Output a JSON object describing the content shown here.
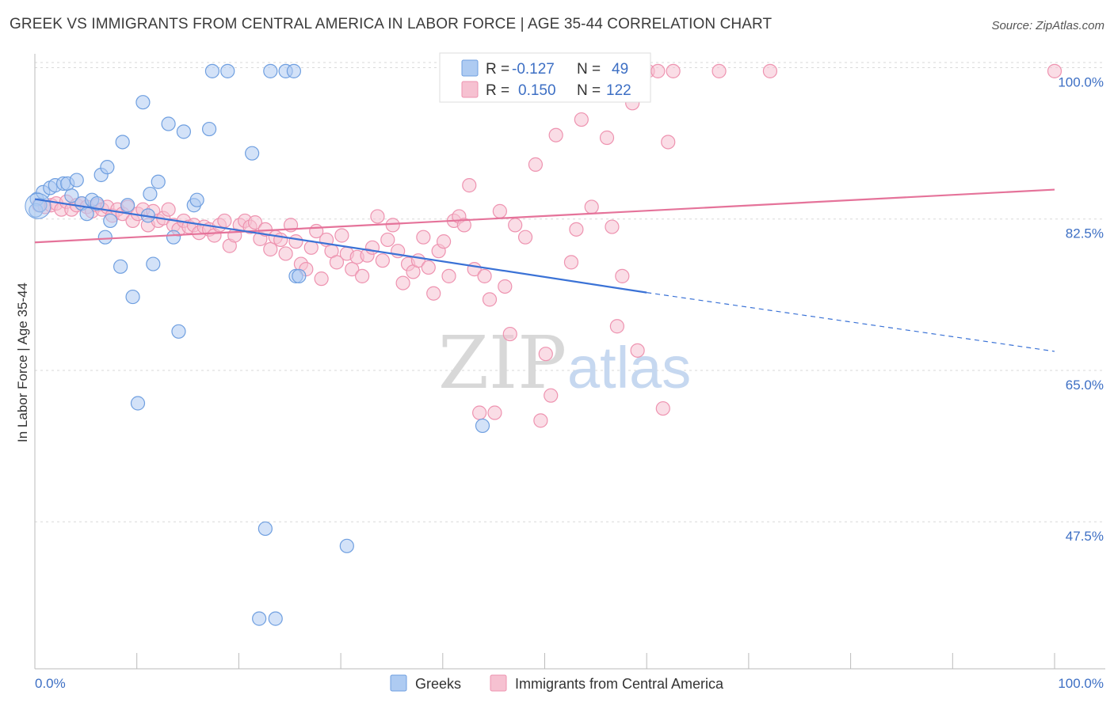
{
  "title": "GREEK VS IMMIGRANTS FROM CENTRAL AMERICA IN LABOR FORCE | AGE 35-44 CORRELATION CHART",
  "source": "Source: ZipAtlas.com",
  "watermark": {
    "zip": "ZIP",
    "atlas": "atlas"
  },
  "colors": {
    "greek_fill": "#aecbf2",
    "greek_stroke": "#6f9fe0",
    "greek_line": "#3a72d6",
    "central_fill": "#f6c1d1",
    "central_stroke": "#ee93b0",
    "central_line": "#e5739a",
    "tick_text": "#3d6fc4",
    "grid": "#d9d9d9"
  },
  "legend": {
    "r_label": "R =",
    "n_label": "N =",
    "rows": [
      {
        "r": "-0.127",
        "n": "49",
        "series": "greeks"
      },
      {
        "r": "0.150",
        "n": "122",
        "series": "central"
      }
    ]
  },
  "chart_data": {
    "type": "scatter",
    "title": "GREEK VS IMMIGRANTS FROM CENTRAL AMERICA IN LABOR FORCE | AGE 35-44 CORRELATION CHART",
    "xlabel": "",
    "ylabel": "In Labor Force | Age 35-44",
    "xlim": [
      0,
      100
    ],
    "ylim": [
      30.5,
      101.6
    ],
    "x_tick_labels": [
      "0.0%",
      "100.0%"
    ],
    "y_ticks": [
      47.5,
      65.0,
      82.5,
      100.0
    ],
    "y_tick_labels": [
      "47.5%",
      "65.0%",
      "82.5%",
      "100.0%"
    ],
    "grid": true,
    "legend_position": "top-center",
    "series": [
      {
        "name": "Greeks",
        "key": "greeks",
        "points": [
          [
            0.2,
            84.8
          ],
          [
            0.8,
            85.6
          ],
          [
            1.5,
            86.1
          ],
          [
            2.0,
            86.4
          ],
          [
            2.8,
            86.6
          ],
          [
            3.2,
            86.6
          ],
          [
            4.1,
            87.0
          ],
          [
            3.6,
            85.2
          ],
          [
            4.6,
            84.3
          ],
          [
            5.1,
            83.1
          ],
          [
            5.6,
            84.7
          ],
          [
            6.1,
            84.3
          ],
          [
            6.5,
            87.6
          ],
          [
            7.1,
            88.5
          ],
          [
            6.9,
            80.4
          ],
          [
            7.4,
            82.3
          ],
          [
            8.4,
            77.0
          ],
          [
            8.6,
            91.4
          ],
          [
            9.1,
            84.1
          ],
          [
            9.6,
            73.5
          ],
          [
            10.1,
            61.2
          ],
          [
            10.6,
            96.0
          ],
          [
            11.1,
            82.9
          ],
          [
            11.3,
            85.4
          ],
          [
            11.6,
            77.3
          ],
          [
            12.1,
            86.8
          ],
          [
            13.1,
            93.5
          ],
          [
            13.6,
            80.4
          ],
          [
            14.1,
            69.5
          ],
          [
            14.6,
            92.6
          ],
          [
            15.6,
            84.1
          ],
          [
            15.9,
            84.7
          ],
          [
            17.1,
            92.9
          ],
          [
            17.4,
            99.6
          ],
          [
            18.9,
            99.6
          ],
          [
            21.3,
            90.1
          ],
          [
            22.0,
            36.3
          ],
          [
            22.6,
            46.7
          ],
          [
            23.1,
            99.6
          ],
          [
            23.6,
            36.3
          ],
          [
            24.6,
            99.6
          ],
          [
            25.4,
            99.6
          ],
          [
            25.6,
            75.9
          ],
          [
            25.9,
            75.9
          ],
          [
            30.6,
            44.7
          ],
          [
            43.9,
            58.6
          ],
          [
            53.0,
            99.6
          ],
          [
            0.1,
            83.5
          ],
          [
            0.5,
            84.1
          ]
        ],
        "trend": {
          "solid": [
            [
              0.0,
              84.8
            ],
            [
              60.0,
              74.0
            ]
          ],
          "dashed": [
            [
              60.0,
              74.0
            ],
            [
              100.0,
              67.2
            ]
          ]
        }
      },
      {
        "name": "Immigrants from Central America",
        "key": "central",
        "points": [
          [
            0.4,
            84.1
          ],
          [
            1.0,
            83.9
          ],
          [
            1.6,
            84.1
          ],
          [
            2.1,
            84.3
          ],
          [
            2.6,
            83.6
          ],
          [
            3.1,
            84.5
          ],
          [
            3.6,
            83.6
          ],
          [
            4.1,
            84.1
          ],
          [
            4.6,
            84.3
          ],
          [
            5.1,
            83.9
          ],
          [
            5.6,
            83.4
          ],
          [
            6.1,
            84.1
          ],
          [
            6.6,
            83.6
          ],
          [
            7.1,
            83.9
          ],
          [
            7.6,
            82.9
          ],
          [
            8.1,
            83.6
          ],
          [
            8.6,
            83.1
          ],
          [
            9.1,
            83.9
          ],
          [
            9.6,
            82.3
          ],
          [
            10.1,
            83.1
          ],
          [
            10.6,
            83.6
          ],
          [
            11.1,
            81.8
          ],
          [
            11.6,
            83.4
          ],
          [
            12.1,
            82.3
          ],
          [
            12.6,
            82.6
          ],
          [
            13.1,
            83.6
          ],
          [
            13.6,
            81.8
          ],
          [
            14.1,
            81.3
          ],
          [
            14.6,
            82.3
          ],
          [
            15.1,
            81.6
          ],
          [
            15.6,
            81.8
          ],
          [
            16.1,
            80.9
          ],
          [
            16.6,
            81.6
          ],
          [
            17.1,
            81.3
          ],
          [
            17.6,
            80.6
          ],
          [
            18.1,
            81.8
          ],
          [
            18.6,
            82.3
          ],
          [
            19.1,
            79.4
          ],
          [
            19.6,
            80.6
          ],
          [
            20.1,
            81.8
          ],
          [
            20.6,
            82.3
          ],
          [
            21.1,
            81.6
          ],
          [
            21.6,
            82.1
          ],
          [
            22.1,
            80.2
          ],
          [
            22.6,
            81.3
          ],
          [
            23.1,
            79.0
          ],
          [
            23.6,
            80.4
          ],
          [
            24.1,
            80.1
          ],
          [
            24.6,
            78.5
          ],
          [
            25.1,
            81.8
          ],
          [
            25.6,
            79.9
          ],
          [
            26.1,
            77.3
          ],
          [
            26.6,
            76.7
          ],
          [
            27.1,
            79.2
          ],
          [
            27.6,
            81.1
          ],
          [
            28.1,
            75.6
          ],
          [
            28.6,
            80.1
          ],
          [
            29.1,
            78.8
          ],
          [
            29.6,
            77.5
          ],
          [
            30.1,
            80.6
          ],
          [
            30.6,
            78.5
          ],
          [
            31.1,
            76.7
          ],
          [
            31.6,
            78.1
          ],
          [
            32.1,
            75.9
          ],
          [
            32.6,
            78.3
          ],
          [
            33.1,
            79.2
          ],
          [
            33.6,
            82.8
          ],
          [
            34.1,
            77.7
          ],
          [
            34.6,
            80.1
          ],
          [
            35.1,
            81.8
          ],
          [
            35.6,
            78.8
          ],
          [
            36.1,
            75.1
          ],
          [
            36.6,
            77.3
          ],
          [
            37.1,
            76.4
          ],
          [
            37.6,
            77.7
          ],
          [
            38.1,
            80.4
          ],
          [
            38.6,
            76.9
          ],
          [
            39.1,
            73.9
          ],
          [
            39.6,
            78.8
          ],
          [
            40.1,
            79.9
          ],
          [
            40.6,
            75.9
          ],
          [
            41.1,
            82.3
          ],
          [
            41.6,
            82.8
          ],
          [
            42.1,
            81.8
          ],
          [
            42.6,
            86.4
          ],
          [
            43.1,
            76.7
          ],
          [
            43.6,
            60.1
          ],
          [
            44.1,
            75.9
          ],
          [
            44.6,
            73.2
          ],
          [
            45.1,
            60.1
          ],
          [
            45.6,
            83.4
          ],
          [
            46.1,
            74.7
          ],
          [
            46.6,
            69.2
          ],
          [
            47.1,
            81.8
          ],
          [
            48.1,
            80.4
          ],
          [
            49.1,
            88.8
          ],
          [
            49.6,
            59.2
          ],
          [
            50.1,
            66.9
          ],
          [
            50.6,
            62.1
          ],
          [
            51.1,
            92.2
          ],
          [
            51.6,
            99.6
          ],
          [
            52.6,
            77.5
          ],
          [
            53.1,
            81.3
          ],
          [
            53.6,
            94.0
          ],
          [
            54.1,
            97.3
          ],
          [
            54.6,
            83.9
          ],
          [
            55.6,
            99.6
          ],
          [
            56.1,
            91.9
          ],
          [
            56.6,
            81.6
          ],
          [
            57.1,
            70.1
          ],
          [
            57.6,
            75.9
          ],
          [
            58.1,
            99.6
          ],
          [
            58.6,
            95.9
          ],
          [
            59.1,
            67.3
          ],
          [
            60.1,
            99.6
          ],
          [
            61.1,
            99.6
          ],
          [
            61.6,
            60.6
          ],
          [
            62.1,
            91.4
          ],
          [
            62.6,
            99.6
          ],
          [
            67.1,
            99.6
          ],
          [
            72.1,
            99.6
          ],
          [
            100.0,
            99.6
          ]
        ],
        "trend": {
          "solid": [
            [
              0.0,
              79.8
            ],
            [
              100.0,
              85.9
            ]
          ]
        }
      }
    ]
  }
}
